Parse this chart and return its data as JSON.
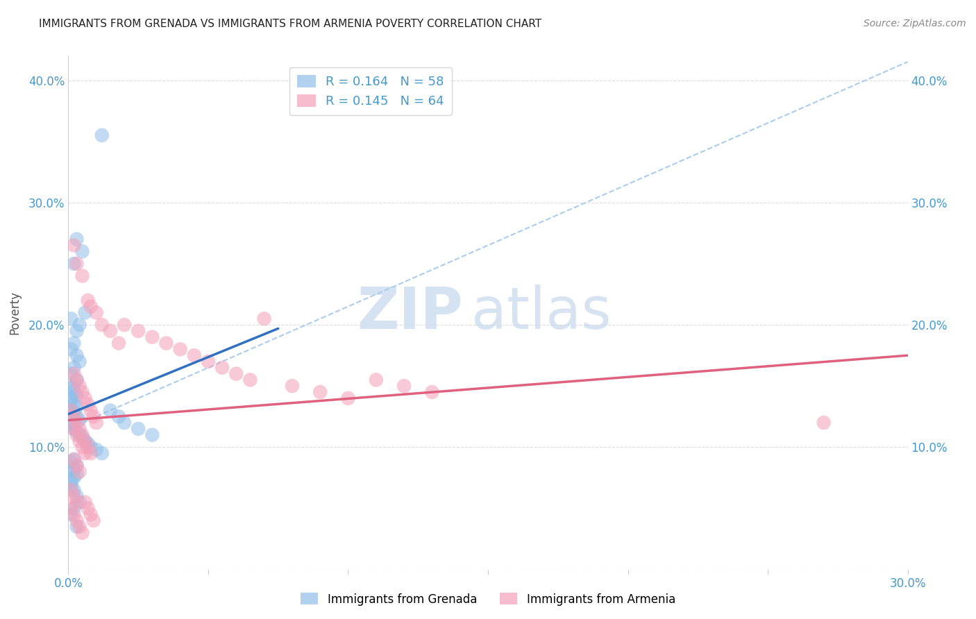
{
  "title": "IMMIGRANTS FROM GRENADA VS IMMIGRANTS FROM ARMENIA POVERTY CORRELATION CHART",
  "source": "Source: ZipAtlas.com",
  "ylabel": "Poverty",
  "xlim": [
    0,
    0.3
  ],
  "ylim": [
    0,
    0.42
  ],
  "grenada_color": "#90BEE8",
  "armenia_color": "#F4A0B8",
  "grenada_line_color": "#3070C0",
  "armenia_line_color": "#E06080",
  "dash_line_color": "#AACCEE",
  "grenada_R": 0.164,
  "grenada_N": 58,
  "armenia_R": 0.145,
  "armenia_N": 64,
  "legend_label_grenada": "Immigrants from Grenada",
  "legend_label_armenia": "Immigrants from Armenia",
  "watermark_zip": "ZIP",
  "watermark_atlas": "atlas",
  "background_color": "#ffffff",
  "tick_color": "#4499CC",
  "title_color": "#222222",
  "ylabel_color": "#555555",
  "source_color": "#888888",
  "grenada_x": [
    0.012,
    0.003,
    0.005,
    0.002,
    0.006,
    0.001,
    0.004,
    0.003,
    0.002,
    0.001,
    0.003,
    0.004,
    0.002,
    0.001,
    0.003,
    0.002,
    0.001,
    0.002,
    0.003,
    0.001,
    0.001,
    0.002,
    0.003,
    0.001,
    0.002,
    0.003,
    0.004,
    0.002,
    0.001,
    0.002,
    0.003,
    0.004,
    0.005,
    0.006,
    0.007,
    0.008,
    0.01,
    0.012,
    0.015,
    0.018,
    0.02,
    0.025,
    0.03,
    0.002,
    0.001,
    0.003,
    0.002,
    0.001,
    0.003,
    0.002,
    0.001,
    0.001,
    0.002,
    0.003,
    0.004,
    0.002,
    0.001,
    0.003
  ],
  "grenada_y": [
    0.355,
    0.27,
    0.26,
    0.25,
    0.21,
    0.205,
    0.2,
    0.195,
    0.185,
    0.18,
    0.175,
    0.17,
    0.165,
    0.16,
    0.155,
    0.15,
    0.148,
    0.145,
    0.142,
    0.14,
    0.138,
    0.135,
    0.133,
    0.13,
    0.128,
    0.125,
    0.122,
    0.12,
    0.118,
    0.115,
    0.113,
    0.11,
    0.108,
    0.105,
    0.103,
    0.1,
    0.098,
    0.095,
    0.13,
    0.125,
    0.12,
    0.115,
    0.11,
    0.09,
    0.088,
    0.085,
    0.082,
    0.08,
    0.078,
    0.075,
    0.072,
    0.068,
    0.065,
    0.06,
    0.055,
    0.05,
    0.045,
    0.035
  ],
  "armenia_x": [
    0.002,
    0.003,
    0.005,
    0.007,
    0.008,
    0.01,
    0.012,
    0.015,
    0.018,
    0.02,
    0.025,
    0.03,
    0.035,
    0.04,
    0.045,
    0.05,
    0.055,
    0.06,
    0.065,
    0.07,
    0.08,
    0.09,
    0.1,
    0.11,
    0.12,
    0.13,
    0.27,
    0.002,
    0.003,
    0.004,
    0.005,
    0.006,
    0.007,
    0.008,
    0.009,
    0.01,
    0.002,
    0.003,
    0.004,
    0.005,
    0.006,
    0.002,
    0.003,
    0.004,
    0.001,
    0.002,
    0.003,
    0.004,
    0.005,
    0.006,
    0.007,
    0.008,
    0.001,
    0.002,
    0.003,
    0.001,
    0.002,
    0.003,
    0.004,
    0.005,
    0.006,
    0.007,
    0.008,
    0.009
  ],
  "armenia_y": [
    0.265,
    0.25,
    0.24,
    0.22,
    0.215,
    0.21,
    0.2,
    0.195,
    0.185,
    0.2,
    0.195,
    0.19,
    0.185,
    0.18,
    0.175,
    0.17,
    0.165,
    0.16,
    0.155,
    0.205,
    0.15,
    0.145,
    0.14,
    0.155,
    0.15,
    0.145,
    0.12,
    0.16,
    0.155,
    0.15,
    0.145,
    0.14,
    0.135,
    0.13,
    0.125,
    0.12,
    0.115,
    0.11,
    0.105,
    0.1,
    0.095,
    0.09,
    0.085,
    0.08,
    0.13,
    0.125,
    0.12,
    0.115,
    0.11,
    0.105,
    0.1,
    0.095,
    0.065,
    0.06,
    0.055,
    0.05,
    0.045,
    0.04,
    0.035,
    0.03,
    0.055,
    0.05,
    0.045,
    0.04
  ],
  "grenada_trend_x": [
    0.0,
    0.075
  ],
  "grenada_trend_y": [
    0.127,
    0.197
  ],
  "armenia_trend_x": [
    0.0,
    0.3
  ],
  "armenia_trend_y": [
    0.122,
    0.175
  ],
  "dash_trend_x": [
    0.0,
    0.3
  ],
  "dash_trend_y": [
    0.115,
    0.415
  ]
}
